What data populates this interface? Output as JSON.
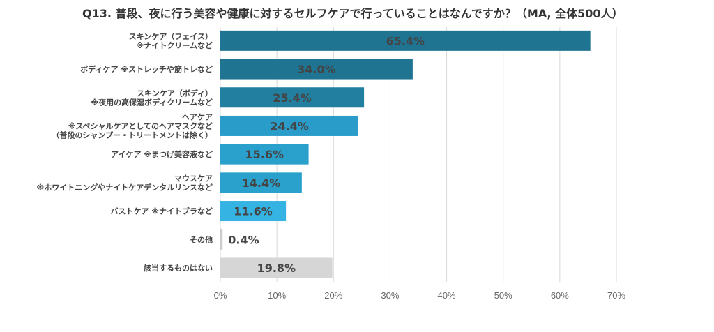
{
  "title": "Q13. 普段、夜に行う美容や健康に対するセルフケアで行っていることはなんですか？（MA, 全体500人）",
  "chart_data": {
    "type": "bar",
    "orientation": "horizontal",
    "title": "Q13. 普段、夜に行う美容や健康に対するセルフケアで行っていることはなんですか？（MA, 全体500人）",
    "categories": [
      [
        "スキンケア（フェイス）",
        "※ナイトクリームなど"
      ],
      [
        "ボディケア ※ストレッチや筋トレなど"
      ],
      [
        "スキンケア（ボディ）",
        "※夜用の高保湿ボディクリームなど"
      ],
      [
        "ヘアケア",
        "※スペシャルケアとしてのヘアマスクなど",
        "（普段のシャンプー・トリートメントは除く）"
      ],
      [
        "アイケア ※まつげ美容液など"
      ],
      [
        "マウスケア",
        "※ホワイトニングやナイトケアデンタルリンスなど"
      ],
      [
        "バストケア ※ナイトブラなど"
      ],
      [
        "その他"
      ],
      [
        "該当するものはない"
      ]
    ],
    "values": [
      65.4,
      34.0,
      25.4,
      24.4,
      15.6,
      14.4,
      11.6,
      0.4,
      19.8
    ],
    "value_labels": [
      "65.4%",
      "34.0%",
      "25.4%",
      "24.4%",
      "15.6%",
      "14.4%",
      "11.6%",
      "0.4%",
      "19.8%"
    ],
    "colors": [
      "#1f7492",
      "#1f7492",
      "#227fa0",
      "#2a9cc9",
      "#2aa0cc",
      "#2aa0cc",
      "#35b3e3",
      "#cccccc",
      "#d6d6d6"
    ],
    "xlim": [
      0,
      70
    ],
    "xticks": [
      "0%",
      "10%",
      "20%",
      "30%",
      "40%",
      "50%",
      "60%",
      "70%"
    ],
    "grid": true
  }
}
